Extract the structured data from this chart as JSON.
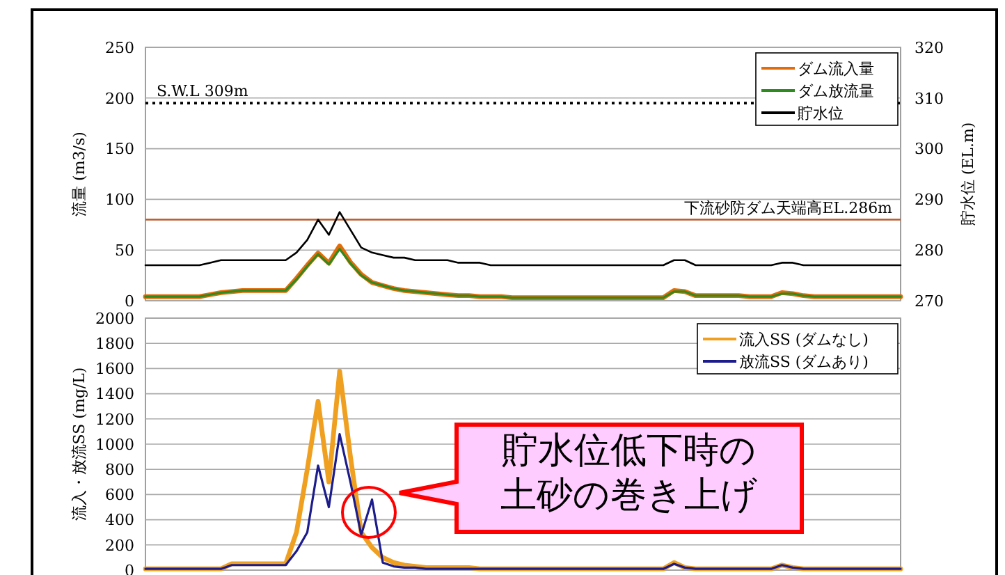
{
  "chart_data": [
    {
      "type": "line",
      "ylabel": "流量 (m3/s)",
      "y2label": "貯水位 (EL.m)",
      "categories": [
        null,
        null,
        null,
        null,
        null,
        null,
        null,
        null,
        null,
        null,
        null,
        null,
        null,
        null,
        null,
        null,
        null,
        null,
        null,
        null,
        null,
        null,
        null,
        null,
        null,
        null,
        null,
        null,
        null,
        null,
        null,
        null,
        null,
        null,
        null,
        null,
        null,
        null,
        null,
        null,
        null,
        null,
        null,
        null,
        null,
        null,
        null,
        null,
        null,
        null,
        null,
        null,
        null,
        null,
        null,
        null,
        null,
        null,
        null,
        null,
        null,
        null,
        null,
        null,
        null,
        null,
        null,
        null,
        null,
        null,
        null
      ],
      "ylim": [
        0,
        250
      ],
      "yticks": [
        0,
        50,
        100,
        150,
        200,
        250
      ],
      "y2lim": [
        270,
        320
      ],
      "y2ticks": [
        270,
        280,
        290,
        300,
        310,
        320
      ],
      "grid": "y",
      "legend": "top right",
      "tick_labels": "y",
      "ref_lines": [
        {
          "axis": "y2",
          "value": 309,
          "label": "S.W.L 309m",
          "color": "#000000",
          "line_style": "dotted"
        },
        {
          "axis": "y2",
          "value": 286,
          "label": "下流砂防ダム天端高EL.286m",
          "color": "#b85a2a",
          "line_style": "solid"
        }
      ],
      "series": [
        {
          "name": "ダム流入量",
          "color": "#e36c0a",
          "values": [
            4,
            4,
            4,
            4,
            4,
            4,
            6,
            8,
            9,
            10,
            10,
            10,
            10,
            10,
            22,
            35,
            47,
            37,
            54,
            38,
            26,
            18,
            15,
            12,
            10,
            9,
            8,
            7,
            6,
            5,
            5,
            4,
            4,
            4,
            3,
            3,
            3,
            3,
            3,
            3,
            3,
            3,
            3,
            3,
            3,
            3,
            3,
            3,
            3,
            10,
            9,
            5,
            5,
            5,
            5,
            5,
            4,
            4,
            4,
            8,
            7,
            5,
            4,
            4,
            4,
            4,
            4,
            4,
            4,
            4,
            4
          ]
        },
        {
          "name": "ダム放流量",
          "color": "#2e8b20",
          "values": [
            4,
            4,
            4,
            4,
            4,
            4,
            6,
            8,
            9,
            10,
            10,
            10,
            10,
            10,
            21,
            34,
            46,
            36,
            51,
            37,
            25,
            18,
            15,
            12,
            10,
            9,
            8,
            7,
            6,
            5,
            5,
            4,
            4,
            4,
            3,
            3,
            3,
            3,
            3,
            3,
            3,
            3,
            3,
            3,
            3,
            3,
            3,
            3,
            3,
            9,
            9,
            5,
            5,
            5,
            5,
            5,
            4,
            4,
            4,
            7,
            7,
            5,
            4,
            4,
            4,
            4,
            4,
            4,
            4,
            4,
            4
          ]
        },
        {
          "name": "貯水位",
          "color": "#000000",
          "axis": "y2",
          "values": [
            277,
            277,
            277,
            277,
            277,
            277,
            277.5,
            278,
            278,
            278,
            278,
            278,
            278,
            278,
            279.5,
            282,
            286,
            283,
            287.5,
            284,
            280.5,
            279.5,
            279,
            278.5,
            278.5,
            278,
            278,
            278,
            278,
            277.5,
            277.5,
            277.5,
            277,
            277,
            277,
            277,
            277,
            277,
            277,
            277,
            277,
            277,
            277,
            277,
            277,
            277,
            277,
            277,
            277,
            278,
            278,
            277,
            277,
            277,
            277,
            277,
            277,
            277,
            277,
            277.5,
            277.5,
            277,
            277,
            277,
            277,
            277,
            277,
            277,
            277,
            277,
            277
          ]
        }
      ]
    },
    {
      "type": "line",
      "ylabel": "流入・放流SS (mg/L)",
      "categories": [
        null,
        null,
        null,
        null,
        null,
        null,
        null,
        null,
        null,
        null,
        null,
        null,
        null,
        null,
        null,
        null,
        null,
        null,
        null,
        null,
        null,
        null,
        null,
        null,
        null,
        null,
        null,
        null,
        null,
        null,
        null,
        null,
        null,
        null,
        null,
        null,
        null,
        null,
        null,
        null,
        null,
        null,
        null,
        null,
        null,
        null,
        null,
        null,
        null,
        null,
        null,
        null,
        null,
        null,
        null,
        null,
        null,
        null,
        null,
        null,
        null,
        null,
        null,
        null,
        null,
        null,
        null,
        null,
        null,
        null,
        null
      ],
      "ylim": [
        0,
        2000
      ],
      "yticks": [
        0,
        200,
        400,
        600,
        800,
        1000,
        1200,
        1400,
        1600,
        1800,
        2000
      ],
      "grid": "y",
      "legend": "top right",
      "tick_labels": "y",
      "annotations": [
        "貯水位低下時の土砂の巻き上げ"
      ],
      "series": [
        {
          "name": "流入SS (ダムなし)",
          "color": "#f0a020",
          "values": [
            10,
            10,
            10,
            10,
            10,
            10,
            10,
            10,
            50,
            50,
            50,
            50,
            50,
            50,
            300,
            800,
            1340,
            700,
            1580,
            900,
            300,
            180,
            100,
            60,
            40,
            30,
            20,
            20,
            20,
            20,
            20,
            10,
            10,
            10,
            10,
            10,
            10,
            10,
            10,
            10,
            10,
            10,
            10,
            10,
            10,
            10,
            10,
            10,
            10,
            60,
            20,
            10,
            10,
            10,
            10,
            10,
            10,
            10,
            10,
            40,
            20,
            10,
            10,
            10,
            10,
            10,
            10,
            10,
            10,
            10,
            10
          ]
        },
        {
          "name": "放流SS (ダムあり)",
          "color": "#1c1c8c",
          "values": [
            10,
            10,
            10,
            10,
            10,
            10,
            10,
            10,
            40,
            40,
            40,
            40,
            40,
            40,
            150,
            300,
            830,
            500,
            1080,
            700,
            280,
            560,
            60,
            30,
            20,
            20,
            10,
            10,
            10,
            10,
            10,
            10,
            10,
            10,
            10,
            10,
            10,
            10,
            10,
            10,
            10,
            10,
            10,
            10,
            10,
            10,
            10,
            10,
            10,
            50,
            20,
            10,
            10,
            10,
            10,
            10,
            10,
            10,
            10,
            40,
            20,
            10,
            10,
            10,
            10,
            10,
            10,
            10,
            10,
            10,
            10
          ]
        }
      ]
    }
  ]
}
